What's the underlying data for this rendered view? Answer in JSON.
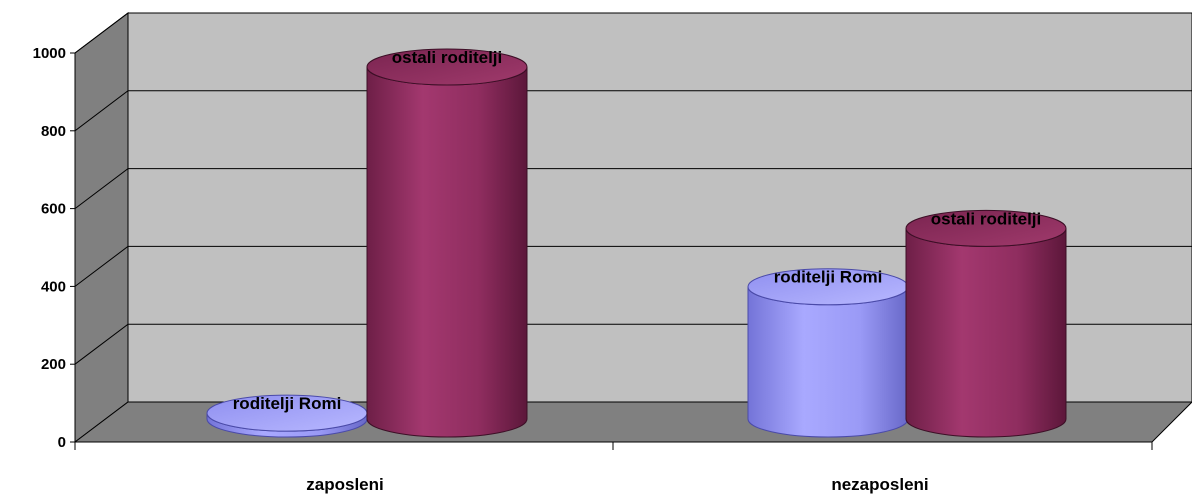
{
  "chart_data": {
    "type": "bar",
    "style": "3d-cylinder",
    "categories": [
      "zaposleni",
      "nezaposleni"
    ],
    "series": [
      {
        "name": "roditelji Romi",
        "values": [
          15,
          340
        ],
        "color": "#9999ff"
      },
      {
        "name": "ostali roditelji",
        "values": [
          905,
          490
        ],
        "color": "#993366"
      }
    ],
    "data_labels": [
      [
        "roditelji Romi",
        "ostali roditelji"
      ],
      [
        "roditelji Romi",
        "ostali roditelji"
      ]
    ],
    "y_ticks": [
      "0",
      "200",
      "400",
      "600",
      "800",
      "1000"
    ],
    "ylim": [
      0,
      1000
    ],
    "grid": true,
    "legend": "none",
    "title": "",
    "xlabel": "",
    "ylabel": ""
  }
}
